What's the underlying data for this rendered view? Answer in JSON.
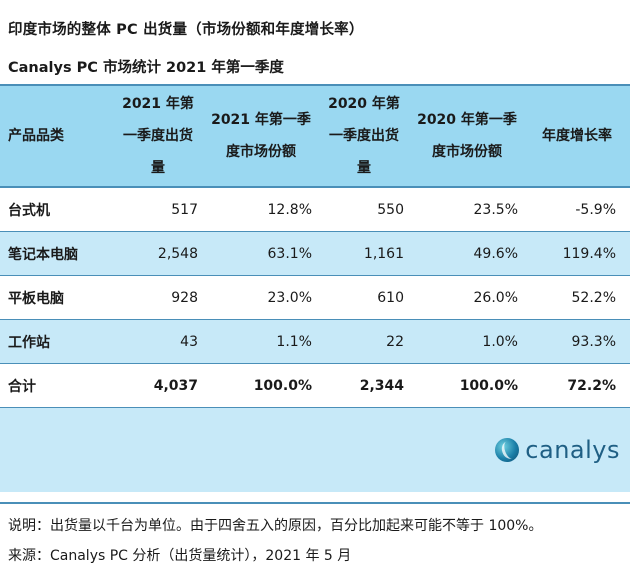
{
  "title": "印度市场的整体 PC 出货量（市场份额和年度增长率）",
  "subtitle": "Canalys PC 市场统计 2021 年第一季度",
  "table": {
    "headers": [
      "产品品类",
      "2021 年第一季度出货量",
      "2021 年第一季度市场份额",
      "2020 年第一季度出货量",
      "2020 年第一季度市场份额",
      "年度增长率"
    ],
    "rows": [
      {
        "category": "台式机",
        "q1_2021": "517",
        "share_2021": "12.8%",
        "q1_2020": "550",
        "share_2020": "23.5%",
        "growth": "-5.9%"
      },
      {
        "category": "笔记本电脑",
        "q1_2021": "2,548",
        "share_2021": "63.1%",
        "q1_2020": "1,161",
        "share_2020": "49.6%",
        "growth": "119.4%"
      },
      {
        "category": "平板电脑",
        "q1_2021": "928",
        "share_2021": "23.0%",
        "q1_2020": "610",
        "share_2020": "26.0%",
        "growth": "52.2%"
      },
      {
        "category": "工作站",
        "q1_2021": "43",
        "share_2021": "1.1%",
        "q1_2020": "22",
        "share_2020": "1.0%",
        "growth": "93.3%"
      }
    ],
    "total": {
      "category": "合计",
      "q1_2021": "4,037",
      "share_2021": "100.0%",
      "q1_2020": "2,344",
      "share_2020": "100.0%",
      "growth": "72.2%"
    }
  },
  "logo": {
    "text": "canalys",
    "icon": "canalys-logo-icon"
  },
  "note": "说明：出货量以千台为单位。由于四舍五入的原因，百分比加起来可能不等于 100%。",
  "source": "来源：Canalys PC 分析（出货量统计），2021 年 5 月",
  "colors": {
    "header_bg": "#9ad8f1",
    "shade_bg": "#c7e9f8",
    "rule": "#4a8fb8",
    "logo_text": "#1f5f84"
  }
}
